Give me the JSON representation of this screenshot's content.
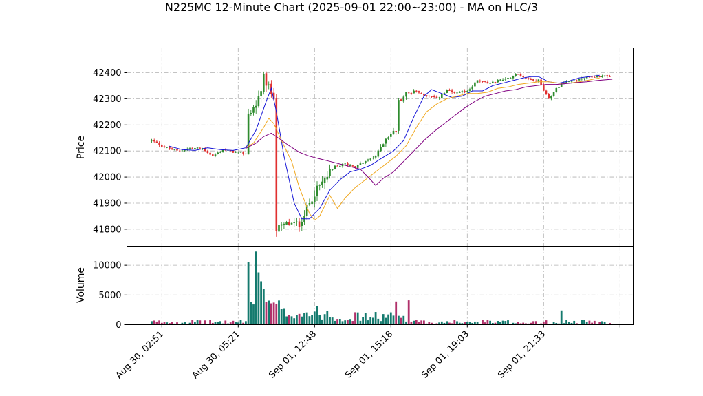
{
  "chart_data": {
    "type": "candlestick",
    "title": "N225MC 12-Minute Chart (2025-09-01 22:00~23:00) - MA on HLC/3",
    "price_panel": {
      "ylabel": "Price",
      "ylim": [
        41735,
        42495
      ],
      "yticks": [
        41800,
        41900,
        42000,
        42100,
        42200,
        42300,
        42400
      ]
    },
    "volume_panel": {
      "ylabel": "Volume",
      "ylim": [
        0,
        13200
      ],
      "yticks": [
        0,
        5000,
        10000
      ]
    },
    "x_ticks": [
      {
        "index": 4,
        "label": "Aug 30, 02:51"
      },
      {
        "index": 34,
        "label": "Aug 30, 05:21"
      },
      {
        "index": 64,
        "label": "Sep 01, 12:48"
      },
      {
        "index": 94,
        "label": "Sep 01, 15:18"
      },
      {
        "index": 124,
        "label": "Sep 01, 19:03"
      },
      {
        "index": 154,
        "label": "Sep 01, 21:33"
      }
    ],
    "bar_count": 184,
    "up_color": "#2e8b2e",
    "down_color": "#e03030",
    "volume_up_color": "#147a6e",
    "volume_down_color": "#b0306a",
    "ma_series": [
      {
        "color": "#1515d6",
        "values": [
          [
            7,
            42118
          ],
          [
            12,
            42105
          ],
          [
            17,
            42102
          ],
          [
            22,
            42112
          ],
          [
            27,
            42105
          ],
          [
            32,
            42102
          ],
          [
            37,
            42112
          ],
          [
            41,
            42180
          ],
          [
            45,
            42290
          ],
          [
            47,
            42340
          ],
          [
            49,
            42250
          ],
          [
            52,
            42080
          ],
          [
            56,
            41900
          ],
          [
            59,
            41840
          ],
          [
            62,
            41840
          ],
          [
            66,
            41880
          ],
          [
            70,
            41950
          ],
          [
            74,
            41990
          ],
          [
            78,
            42020
          ],
          [
            82,
            42030
          ],
          [
            86,
            42045
          ],
          [
            90,
            42070
          ],
          [
            95,
            42100
          ],
          [
            99,
            42140
          ],
          [
            103,
            42230
          ],
          [
            107,
            42310
          ],
          [
            110,
            42335
          ],
          [
            114,
            42320
          ],
          [
            118,
            42305
          ],
          [
            122,
            42310
          ],
          [
            126,
            42330
          ],
          [
            130,
            42330
          ],
          [
            134,
            42350
          ],
          [
            138,
            42360
          ],
          [
            142,
            42370
          ],
          [
            146,
            42380
          ],
          [
            149,
            42385
          ],
          [
            152,
            42385
          ],
          [
            156,
            42365
          ],
          [
            160,
            42360
          ],
          [
            164,
            42368
          ],
          [
            168,
            42380
          ],
          [
            172,
            42385
          ],
          [
            176,
            42390
          ]
        ]
      },
      {
        "color": "#f0a820",
        "values": [
          [
            37,
            42112
          ],
          [
            40,
            42130
          ],
          [
            44,
            42190
          ],
          [
            46,
            42225
          ],
          [
            48,
            42205
          ],
          [
            51,
            42140
          ],
          [
            55,
            42060
          ],
          [
            58,
            41960
          ],
          [
            62,
            41860
          ],
          [
            64,
            41835
          ],
          [
            66,
            41850
          ],
          [
            70,
            41930
          ],
          [
            73,
            41880
          ],
          [
            76,
            41920
          ],
          [
            80,
            41960
          ],
          [
            84,
            41990
          ],
          [
            88,
            42020
          ],
          [
            92,
            42050
          ],
          [
            96,
            42080
          ],
          [
            100,
            42120
          ],
          [
            104,
            42190
          ],
          [
            108,
            42250
          ],
          [
            112,
            42280
          ],
          [
            116,
            42300
          ],
          [
            120,
            42310
          ],
          [
            124,
            42320
          ],
          [
            128,
            42320
          ],
          [
            132,
            42325
          ],
          [
            136,
            42340
          ],
          [
            140,
            42345
          ],
          [
            144,
            42355
          ],
          [
            148,
            42360
          ],
          [
            152,
            42365
          ],
          [
            156,
            42365
          ],
          [
            160,
            42360
          ],
          [
            164,
            42360
          ],
          [
            168,
            42365
          ],
          [
            172,
            42372
          ],
          [
            176,
            42380
          ]
        ]
      },
      {
        "color": "#800080",
        "values": [
          [
            37,
            42110
          ],
          [
            41,
            42130
          ],
          [
            44,
            42155
          ],
          [
            47,
            42168
          ],
          [
            50,
            42148
          ],
          [
            54,
            42120
          ],
          [
            58,
            42095
          ],
          [
            62,
            42080
          ],
          [
            66,
            42070
          ],
          [
            70,
            42060
          ],
          [
            74,
            42050
          ],
          [
            78,
            42040
          ],
          [
            82,
            42030
          ],
          [
            86,
            41990
          ],
          [
            88,
            41968
          ],
          [
            91,
            41995
          ],
          [
            95,
            42020
          ],
          [
            99,
            42060
          ],
          [
            103,
            42100
          ],
          [
            107,
            42140
          ],
          [
            111,
            42175
          ],
          [
            115,
            42205
          ],
          [
            119,
            42235
          ],
          [
            123,
            42265
          ],
          [
            127,
            42290
          ],
          [
            131,
            42310
          ],
          [
            135,
            42320
          ],
          [
            139,
            42330
          ],
          [
            143,
            42335
          ],
          [
            147,
            42345
          ],
          [
            151,
            42350
          ],
          [
            155,
            42355
          ],
          [
            159,
            42355
          ],
          [
            163,
            42358
          ],
          [
            167,
            42362
          ],
          [
            171,
            42365
          ],
          [
            175,
            42370
          ],
          [
            181,
            42375
          ]
        ]
      }
    ]
  }
}
